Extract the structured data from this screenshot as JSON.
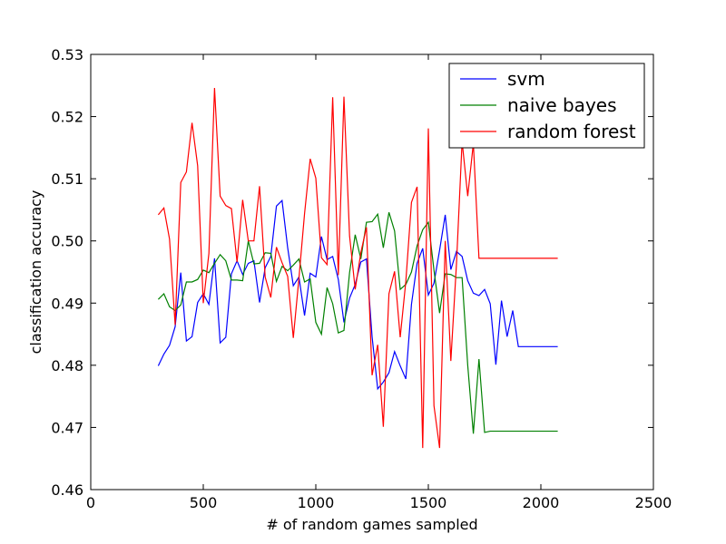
{
  "chart_data": {
    "type": "line",
    "title": "",
    "xlabel": "# of random games sampled",
    "ylabel": "classification accuracy",
    "xlim": [
      0,
      2500
    ],
    "ylim": [
      0.46,
      0.53
    ],
    "xticks": [
      0,
      500,
      1000,
      1500,
      2000,
      2500
    ],
    "xtick_labels": [
      "0",
      "500",
      "1000",
      "1500",
      "2000",
      "2500"
    ],
    "yticks": [
      0.46,
      0.47,
      0.48,
      0.49,
      0.5,
      0.51,
      0.52,
      0.53
    ],
    "ytick_labels": [
      "0.46",
      "0.47",
      "0.48",
      "0.49",
      "0.50",
      "0.51",
      "0.52",
      "0.53"
    ],
    "grid": false,
    "legend_position": "top-right",
    "x": [
      300,
      325,
      350,
      375,
      400,
      425,
      450,
      475,
      500,
      525,
      550,
      575,
      600,
      625,
      650,
      675,
      700,
      725,
      750,
      775,
      800,
      825,
      850,
      875,
      900,
      925,
      950,
      975,
      1000,
      1025,
      1050,
      1075,
      1100,
      1125,
      1150,
      1175,
      1200,
      1225,
      1250,
      1275,
      1300,
      1325,
      1350,
      1375,
      1400,
      1425,
      1450,
      1475,
      1500,
      1525,
      1550,
      1575,
      1600,
      1625,
      1650,
      1675,
      1700,
      1725,
      1750,
      1775,
      1800,
      1825,
      1850,
      1875,
      1900,
      1925,
      1950,
      1975,
      2000,
      2025,
      2050,
      2075
    ],
    "series": [
      {
        "name": "svm",
        "color": "#0000ff",
        "values": [
          0.4799,
          0.4818,
          0.4832,
          0.4862,
          0.4949,
          0.4839,
          0.4846,
          0.4901,
          0.4915,
          0.4898,
          0.4972,
          0.4836,
          0.4845,
          0.4947,
          0.4968,
          0.4946,
          0.4964,
          0.4968,
          0.4901,
          0.4957,
          0.4975,
          0.5056,
          0.5065,
          0.4989,
          0.4928,
          0.4942,
          0.488,
          0.4948,
          0.4942,
          0.5007,
          0.497,
          0.4975,
          0.4938,
          0.4869,
          0.4908,
          0.493,
          0.4966,
          0.4971,
          0.4846,
          0.4762,
          0.4773,
          0.4788,
          0.4822,
          0.4799,
          0.4778,
          0.4898,
          0.4964,
          0.4988,
          0.4913,
          0.4932,
          0.4985,
          0.5042,
          0.4954,
          0.4983,
          0.4975,
          0.4936,
          0.4916,
          0.4912,
          0.4922,
          0.4899,
          0.4801,
          0.4904,
          0.4846,
          0.4888,
          0.483,
          0.483,
          0.483,
          0.483,
          0.483,
          0.483,
          0.483,
          0.483
        ]
      },
      {
        "name": "naive bayes",
        "color": "#008000",
        "values": [
          0.4906,
          0.4915,
          0.4894,
          0.4888,
          0.4897,
          0.4934,
          0.4934,
          0.4938,
          0.4953,
          0.4949,
          0.4964,
          0.4978,
          0.4968,
          0.4937,
          0.4937,
          0.4936,
          0.5,
          0.4963,
          0.4964,
          0.4981,
          0.498,
          0.4935,
          0.4959,
          0.4952,
          0.4961,
          0.4971,
          0.4934,
          0.4939,
          0.4869,
          0.485,
          0.4925,
          0.4899,
          0.4852,
          0.4856,
          0.4949,
          0.501,
          0.4971,
          0.503,
          0.5031,
          0.5043,
          0.4989,
          0.5046,
          0.5016,
          0.4922,
          0.493,
          0.495,
          0.4992,
          0.5018,
          0.503,
          0.4953,
          0.4884,
          0.4947,
          0.4946,
          0.4941,
          0.4941,
          0.48,
          0.469,
          0.481,
          0.4692,
          0.4694,
          0.4694,
          0.4694,
          0.4694,
          0.4694,
          0.4694,
          0.4694,
          0.4694,
          0.4694,
          0.4694,
          0.4694,
          0.4694,
          0.4694
        ]
      },
      {
        "name": "random forest",
        "color": "#ff0000",
        "values": [
          0.5042,
          0.5053,
          0.5003,
          0.4865,
          0.5094,
          0.5111,
          0.519,
          0.5121,
          0.49,
          0.498,
          0.5246,
          0.5072,
          0.5057,
          0.5052,
          0.4966,
          0.5066,
          0.5,
          0.5,
          0.5088,
          0.4942,
          0.4909,
          0.499,
          0.4965,
          0.4943,
          0.4844,
          0.494,
          0.5044,
          0.5132,
          0.5101,
          0.4973,
          0.4962,
          0.5231,
          0.4945,
          0.5232,
          0.5008,
          0.4922,
          0.4981,
          0.5022,
          0.4784,
          0.4833,
          0.4701,
          0.4915,
          0.4951,
          0.4845,
          0.4935,
          0.5062,
          0.5087,
          0.4667,
          0.5181,
          0.4735,
          0.4667,
          0.5,
          0.4807,
          0.4963,
          0.516,
          0.5072,
          0.5157,
          0.4972,
          0.4972,
          0.4972,
          0.4972,
          0.4972,
          0.4972,
          0.4972,
          0.4972,
          0.4972,
          0.4972,
          0.4972,
          0.4972,
          0.4972,
          0.4972,
          0.4972
        ]
      }
    ]
  }
}
